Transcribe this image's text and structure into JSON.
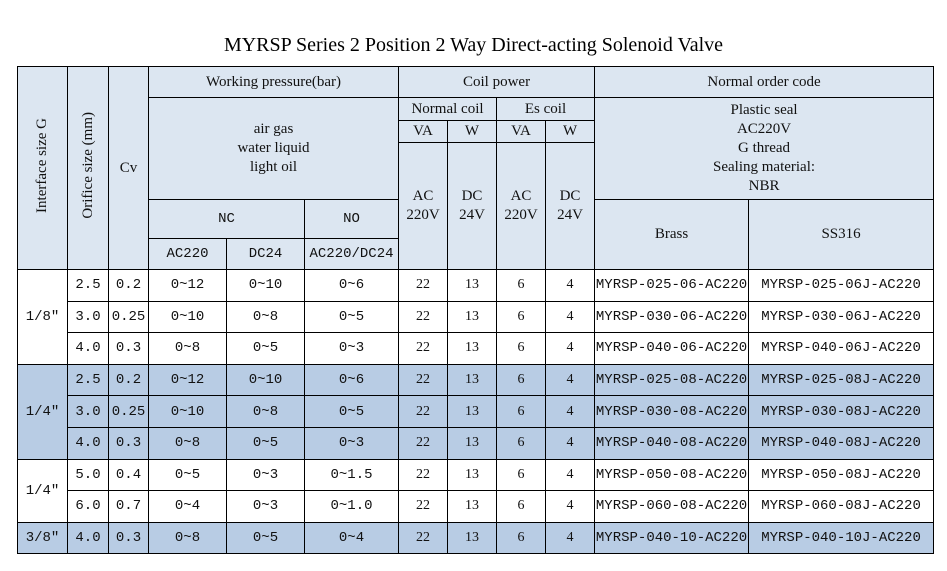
{
  "title": "MYRSP Series 2 Position 2 Way Direct-acting Solenoid Valve",
  "headers": {
    "interface": "Interface size G",
    "orifice": "Orifice size (mm)",
    "cv": "Cv",
    "working_pressure": "Working pressure(bar)",
    "media": [
      "air gas",
      "water liquid",
      "light oil"
    ],
    "nc": "NC",
    "no": "NO",
    "nc_ac": "AC220",
    "nc_dc": "DC24",
    "no_acdc": "AC220/DC24",
    "coil_power": "Coil power",
    "normal_coil": "Normal coil",
    "es_coil": "Es coil",
    "va": "VA",
    "w": "W",
    "ac": "AC",
    "v220": "220V",
    "dc": "DC",
    "v24": "24V",
    "order_code": "Normal order code",
    "seal": [
      "Plastic seal",
      "AC220V",
      "G thread",
      "Sealing material:",
      "NBR"
    ],
    "brass": "Brass",
    "ss316": "SS316"
  },
  "groups": [
    {
      "size": "1/8″",
      "shade": "white",
      "rows": [
        [
          "2.5",
          "0.2",
          "0~12",
          "0~10",
          "0~6",
          "22",
          "13",
          "6",
          "4",
          "MYRSP-025-06-AC220",
          "MYRSP-025-06J-AC220"
        ],
        [
          "3.0",
          "0.25",
          "0~10",
          "0~8",
          "0~5",
          "22",
          "13",
          "6",
          "4",
          "MYRSP-030-06-AC220",
          "MYRSP-030-06J-AC220"
        ],
        [
          "4.0",
          "0.3",
          "0~8",
          "0~5",
          "0~3",
          "22",
          "13",
          "6",
          "4",
          "MYRSP-040-06-AC220",
          "MYRSP-040-06J-AC220"
        ]
      ]
    },
    {
      "size": "1/4″",
      "shade": "blue",
      "rows": [
        [
          "2.5",
          "0.2",
          "0~12",
          "0~10",
          "0~6",
          "22",
          "13",
          "6",
          "4",
          "MYRSP-025-08-AC220",
          "MYRSP-025-08J-AC220"
        ],
        [
          "3.0",
          "0.25",
          "0~10",
          "0~8",
          "0~5",
          "22",
          "13",
          "6",
          "4",
          "MYRSP-030-08-AC220",
          "MYRSP-030-08J-AC220"
        ],
        [
          "4.0",
          "0.3",
          "0~8",
          "0~5",
          "0~3",
          "22",
          "13",
          "6",
          "4",
          "MYRSP-040-08-AC220",
          "MYRSP-040-08J-AC220"
        ]
      ]
    },
    {
      "size": "1/4″",
      "shade": "white",
      "rows": [
        [
          "5.0",
          "0.4",
          "0~5",
          "0~3",
          "0~1.5",
          "22",
          "13",
          "6",
          "4",
          "MYRSP-050-08-AC220",
          "MYRSP-050-08J-AC220"
        ],
        [
          "6.0",
          "0.7",
          "0~4",
          "0~3",
          "0~1.0",
          "22",
          "13",
          "6",
          "4",
          "MYRSP-060-08-AC220",
          "MYRSP-060-08J-AC220"
        ]
      ]
    },
    {
      "size": "3/8″",
      "shade": "blue",
      "rows": [
        [
          "4.0",
          "0.3",
          "0~8",
          "0~5",
          "0~4",
          "22",
          "13",
          "6",
          "4",
          "MYRSP-040-10-AC220",
          "MYRSP-040-10J-AC220"
        ]
      ]
    }
  ],
  "colors": {
    "header": "#dce6f1",
    "blue_row": "#b8cce4"
  }
}
